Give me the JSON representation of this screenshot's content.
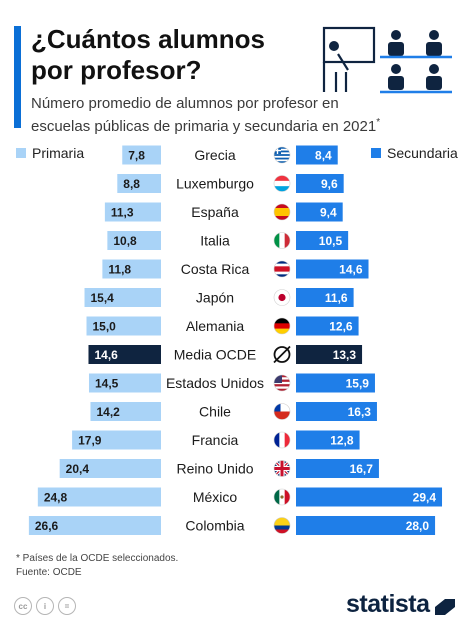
{
  "header": {
    "title_line1": "¿Cuántos alumnos",
    "title_line2": "por profesor?",
    "subtitle_line1": "Número promedio de alumnos por profesor en",
    "subtitle_line2": "escuelas públicas de primaria y secundaria en 2021",
    "subtitle_mark": "*"
  },
  "legend": {
    "left": "Primaria",
    "right": "Secundaria"
  },
  "colors": {
    "primaria": "#a9d3f7",
    "secundaria": "#1f7ee8",
    "average": "#0f2440",
    "accent": "#0b6fd6"
  },
  "chart_data": {
    "type": "bar",
    "orientation": "horizontal-butterfly",
    "categories": [
      "Grecia",
      "Luxemburgo",
      "España",
      "Italia",
      "Costa Rica",
      "Japón",
      "Alemania",
      "Media OCDE",
      "Estados Unidos",
      "Chile",
      "Francia",
      "Reino Unido",
      "México",
      "Colombia"
    ],
    "highlight": "Media OCDE",
    "series": [
      {
        "name": "Primaria",
        "values": [
          7.8,
          8.8,
          11.3,
          10.8,
          11.8,
          15.4,
          15.0,
          14.6,
          14.5,
          14.2,
          17.9,
          20.4,
          24.8,
          26.6
        ]
      },
      {
        "name": "Secundaria",
        "values": [
          8.4,
          9.6,
          9.4,
          10.5,
          14.6,
          11.6,
          12.6,
          13.3,
          15.9,
          16.3,
          12.8,
          16.7,
          29.4,
          28.0
        ]
      }
    ],
    "labels_primaria": [
      "7,8",
      "8,8",
      "11,3",
      "10,8",
      "11,8",
      "15,4",
      "15,0",
      "14,6",
      "14,5",
      "14,2",
      "17,9",
      "20,4",
      "24,8",
      "26,6"
    ],
    "labels_secundaria": [
      "8,4",
      "9,6",
      "9,4",
      "10,5",
      "14,6",
      "11,6",
      "12,6",
      "13,3",
      "15,9",
      "16,3",
      "12,8",
      "16,7",
      "29,4",
      "28,0"
    ],
    "flag_icons": [
      "flag-greece",
      "flag-luxembourg",
      "flag-spain",
      "flag-italy",
      "flag-costa-rica",
      "flag-japan",
      "flag-germany",
      "average-icon",
      "flag-usa",
      "flag-chile",
      "flag-france",
      "flag-uk",
      "flag-mexico",
      "flag-colombia"
    ],
    "average_symbol": "∅",
    "xlim": [
      0,
      30
    ]
  },
  "footer": {
    "note": "* Países de la OCDE seleccionados.",
    "source": "Fuente: OCDE",
    "brand": "statista",
    "license_icons": [
      "cc-icon",
      "by-icon",
      "nd-icon"
    ]
  }
}
